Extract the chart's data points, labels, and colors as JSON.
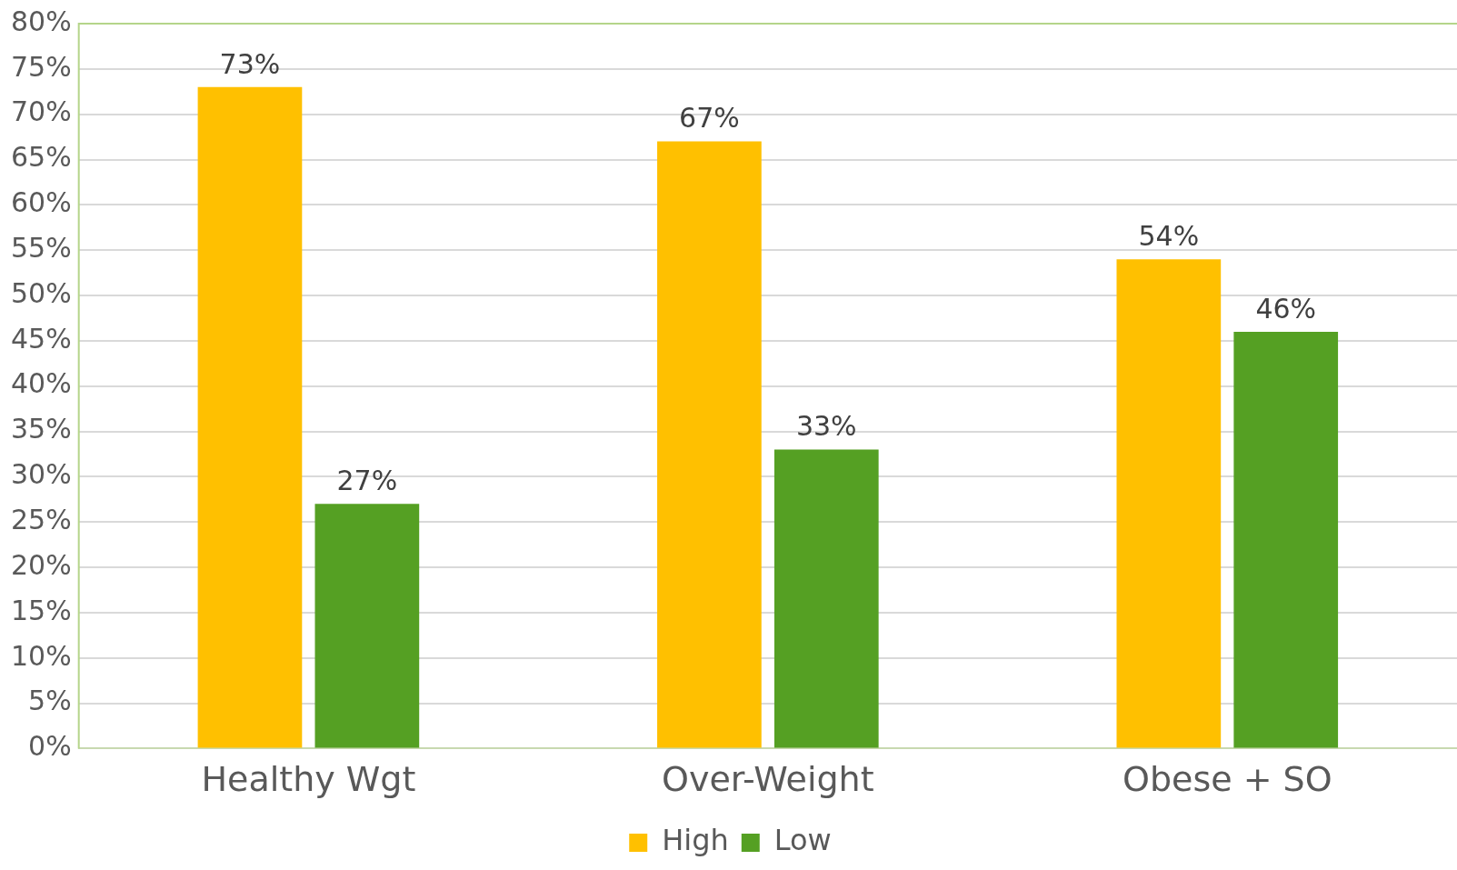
{
  "chart_data": {
    "type": "bar",
    "categories": [
      "Healthy Wgt",
      "Over-Weight",
      "Obese + SO"
    ],
    "series": [
      {
        "name": "High",
        "color": "#ffc000",
        "values": [
          73,
          67,
          54
        ],
        "value_labels": [
          "73%",
          "67%",
          "54%"
        ]
      },
      {
        "name": "Low",
        "color": "#55a023",
        "values": [
          27,
          33,
          46
        ],
        "value_labels": [
          "27%",
          "33%",
          "46%"
        ]
      }
    ],
    "ylim": [
      0,
      80
    ],
    "yticks": [
      {
        "value": 0,
        "label": "0%"
      },
      {
        "value": 5,
        "label": "5%"
      },
      {
        "value": 10,
        "label": "10%"
      },
      {
        "value": 15,
        "label": "15%"
      },
      {
        "value": 20,
        "label": "20%"
      },
      {
        "value": 25,
        "label": "25%"
      },
      {
        "value": 30,
        "label": "30%"
      },
      {
        "value": 35,
        "label": "35%"
      },
      {
        "value": 40,
        "label": "40%"
      },
      {
        "value": 45,
        "label": "45%"
      },
      {
        "value": 50,
        "label": "50%"
      },
      {
        "value": 55,
        "label": "55%"
      },
      {
        "value": 60,
        "label": "60%"
      },
      {
        "value": 65,
        "label": "65%"
      },
      {
        "value": 70,
        "label": "70%"
      },
      {
        "value": 75,
        "label": "75%"
      },
      {
        "value": 80,
        "label": "80%"
      }
    ],
    "grid": "y",
    "legend": "bottom"
  }
}
